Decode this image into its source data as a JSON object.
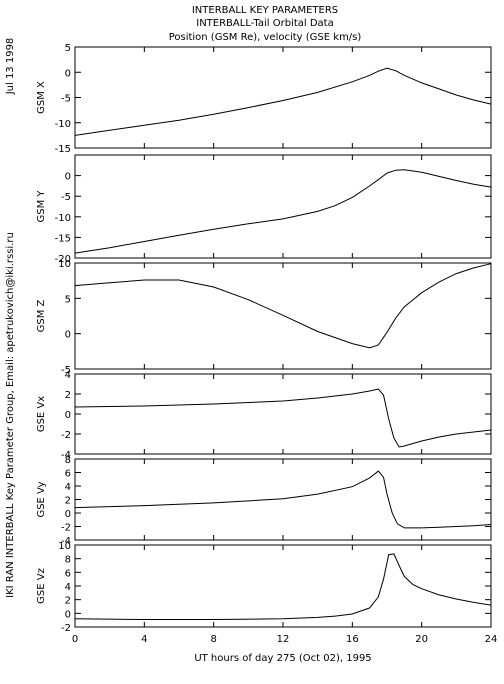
{
  "header": {
    "line1": "INTERBALL KEY PARAMETERS",
    "line2": "INTERBALL-Tail Orbital Data",
    "line3": "Position (GSM Re), velocity (GSE km/s)"
  },
  "side": {
    "date": "Jul 13 1998",
    "credit": "IKI RAN INTERBALL Key Parameter Group, Email: apetrukovich@iki.rssi.ru"
  },
  "colors": {
    "line": "#000000",
    "frame": "#000000",
    "background": "#ffffff"
  },
  "chart_data": [
    {
      "type": "line",
      "ylabel": "GSM X",
      "xlim": [
        0,
        24
      ],
      "ylim": [
        -15,
        5
      ],
      "yticks": [
        -15,
        -10,
        -5,
        0,
        5
      ],
      "x": [
        0,
        2,
        4,
        6,
        8,
        10,
        12,
        14,
        16,
        17,
        17.5,
        18,
        18.5,
        19,
        20,
        21,
        22,
        23,
        24
      ],
      "values": [
        -12.5,
        -11.5,
        -10.5,
        -9.5,
        -8.3,
        -7,
        -5.6,
        -4,
        -1.9,
        -0.6,
        0.2,
        0.8,
        0.3,
        -0.6,
        -2.1,
        -3.3,
        -4.5,
        -5.5,
        -6.3
      ]
    },
    {
      "type": "line",
      "ylabel": "GSM Y",
      "xlim": [
        0,
        24
      ],
      "ylim": [
        -20,
        5
      ],
      "yticks": [
        -20,
        -15,
        -10,
        -5,
        0
      ],
      "x": [
        0,
        2,
        4,
        6,
        8,
        10,
        12,
        14,
        15,
        16,
        17,
        17.5,
        18,
        18.5,
        19,
        20,
        21,
        22,
        23,
        24
      ],
      "values": [
        -18.8,
        -17.5,
        -16,
        -14.5,
        -13,
        -11.7,
        -10.5,
        -8.7,
        -7.3,
        -5.3,
        -2.5,
        -1,
        0.6,
        1.3,
        1.4,
        0.8,
        -0.2,
        -1.2,
        -2.1,
        -2.8
      ]
    },
    {
      "type": "line",
      "ylabel": "GSM Z",
      "xlim": [
        0,
        24
      ],
      "ylim": [
        -5,
        10
      ],
      "yticks": [
        -5,
        0,
        5,
        10
      ],
      "x": [
        0,
        2,
        4,
        6,
        8,
        10,
        12,
        14,
        16,
        17,
        17.5,
        18,
        18.5,
        19,
        20,
        21,
        22,
        23,
        24
      ],
      "values": [
        6.8,
        7.2,
        7.6,
        7.6,
        6.6,
        4.8,
        2.6,
        0.3,
        -1.4,
        -2,
        -1.6,
        0.2,
        2.2,
        3.8,
        5.8,
        7.3,
        8.5,
        9.3,
        9.9
      ]
    },
    {
      "type": "line",
      "ylabel": "GSE Vx",
      "xlim": [
        0,
        24
      ],
      "ylim": [
        -4,
        4
      ],
      "yticks": [
        -4,
        -2,
        0,
        2,
        4
      ],
      "x": [
        0,
        4,
        8,
        12,
        14,
        16,
        17,
        17.5,
        17.8,
        18.1,
        18.4,
        18.7,
        19,
        20,
        21,
        22,
        23,
        24
      ],
      "values": [
        0.7,
        0.8,
        1,
        1.3,
        1.6,
        2,
        2.3,
        2.5,
        1.9,
        -0.5,
        -2.4,
        -3.3,
        -3.2,
        -2.7,
        -2.3,
        -2,
        -1.8,
        -1.6
      ]
    },
    {
      "type": "line",
      "ylabel": "GSE Vy",
      "xlim": [
        0,
        24
      ],
      "ylim": [
        -4,
        8
      ],
      "yticks": [
        -4,
        -2,
        0,
        2,
        4,
        6,
        8
      ],
      "x": [
        0,
        4,
        8,
        12,
        14,
        16,
        17,
        17.5,
        17.8,
        18,
        18.3,
        18.6,
        19,
        20,
        21,
        22,
        23,
        24
      ],
      "values": [
        0.8,
        1.1,
        1.5,
        2.1,
        2.8,
        3.9,
        5.2,
        6.2,
        5.3,
        2.8,
        0,
        -1.6,
        -2.2,
        -2.2,
        -2.1,
        -2,
        -1.9,
        -1.7
      ]
    },
    {
      "type": "line",
      "ylabel": "GSE Vz",
      "xlim": [
        0,
        24
      ],
      "ylim": [
        -2,
        10
      ],
      "yticks": [
        -2,
        0,
        2,
        4,
        6,
        8,
        10
      ],
      "x": [
        0,
        4,
        8,
        12,
        14,
        15,
        16,
        17,
        17.5,
        17.8,
        18.1,
        18.4,
        18.7,
        19,
        19.5,
        20,
        21,
        22,
        23,
        24
      ],
      "values": [
        -0.8,
        -0.9,
        -0.9,
        -0.8,
        -0.6,
        -0.4,
        -0.1,
        0.8,
        2.4,
        5,
        8.6,
        8.7,
        7,
        5.4,
        4.2,
        3.6,
        2.7,
        2.1,
        1.6,
        1.2
      ]
    }
  ],
  "xaxis": {
    "ticks": [
      0,
      4,
      8,
      12,
      16,
      20,
      24
    ],
    "label": "UT hours of day 275 (Oct 02), 1995"
  }
}
